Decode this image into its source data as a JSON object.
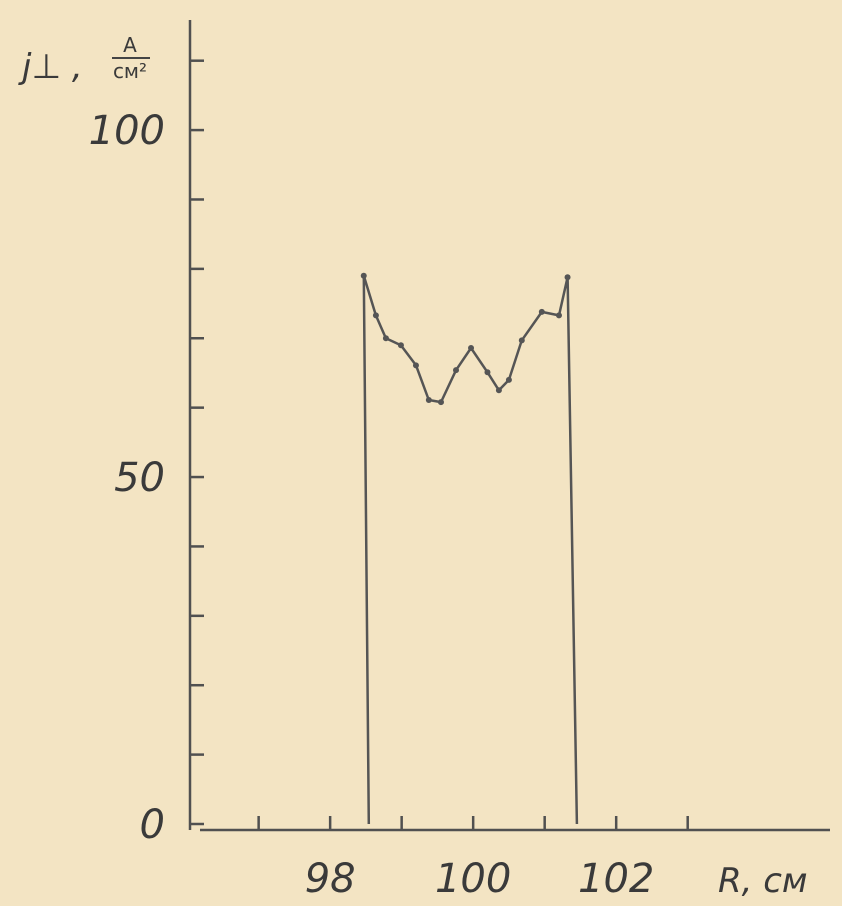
{
  "chart_data": {
    "type": "line",
    "ylabel_symbol": "j⊥ ,",
    "ylabel_unit_numerator": "A",
    "ylabel_unit_denominator": "см²",
    "xlabel": "R, см",
    "xlim": [
      96.18,
      104.99
    ],
    "ylim": [
      0,
      115
    ],
    "xticks": [
      97,
      98,
      99,
      100,
      101,
      102,
      103
    ],
    "xtick_labels": [
      null,
      "98",
      null,
      "100",
      null,
      "102",
      null
    ],
    "yticks": [
      0,
      50,
      100
    ],
    "yminorticks": [
      10,
      20,
      30,
      40,
      60,
      70,
      80,
      90,
      110
    ],
    "color": "#555555",
    "x": [
      98.54,
      98.47,
      98.64,
      98.78,
      98.99,
      99.2,
      99.38,
      99.55,
      99.76,
      99.97,
      100.2,
      100.36,
      100.5,
      100.68,
      100.96,
      101.2,
      101.32,
      101.45
    ],
    "values": [
      0,
      79,
      73.3,
      70,
      69,
      66.1,
      61.1,
      60.8,
      65.4,
      68.6,
      65.1,
      62.5,
      64,
      69.7,
      73.8,
      73.3,
      78.8,
      0
    ]
  }
}
